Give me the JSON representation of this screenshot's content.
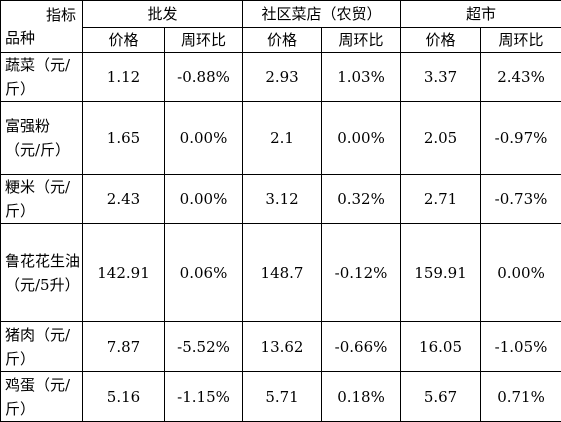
{
  "table": {
    "corner_top": "指标",
    "corner_bottom": "品种",
    "groups": [
      "批发",
      "社区菜店（农贸）",
      "超市"
    ],
    "subheaders": [
      "价格",
      "周环比",
      "价格",
      "周环比",
      "价格",
      "周环比"
    ],
    "rows": [
      [
        "蔬菜（元/斤）",
        "1.12",
        "-0.88%",
        "2.93",
        "1.03%",
        "3.37",
        "2.43%"
      ],
      [
        "富强粉（元/斤）",
        "1.65",
        "0.00%",
        "2.1",
        "0.00%",
        "2.05",
        "-0.97%"
      ],
      [
        "粳米（元/斤）",
        "2.43",
        "0.00%",
        "3.12",
        "0.32%",
        "2.71",
        "-0.73%"
      ],
      [
        "鲁花花生油（元/5升）",
        "142.91",
        "0.06%",
        "148.7",
        "-0.12%",
        "159.91",
        "0.00%"
      ],
      [
        "猪肉（元/斤）",
        "7.87",
        "-5.52%",
        "13.62",
        "-0.66%",
        "16.05",
        "-1.05%"
      ],
      [
        "鸡蛋（元/斤）",
        "5.16",
        "-1.15%",
        "5.71",
        "0.18%",
        "5.67",
        "0.71%"
      ]
    ]
  }
}
